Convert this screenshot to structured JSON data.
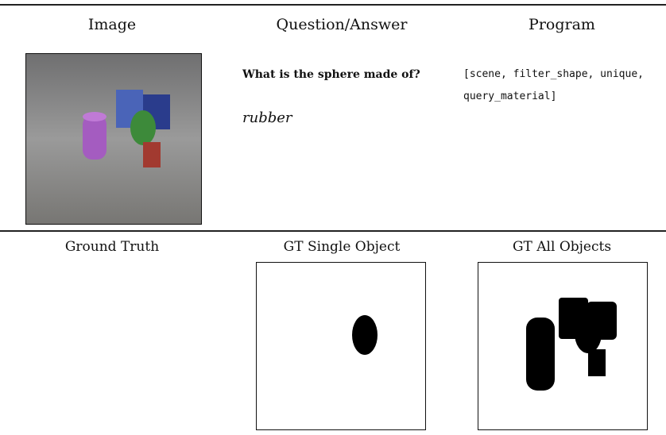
{
  "header": {
    "columns": [
      "Image",
      "Question/Answer",
      "Program"
    ]
  },
  "example": {
    "question": "What is the sphere made of?",
    "answer": "rubber",
    "program": "[scene, filter_shape, unique, query_material]"
  },
  "ground_truth": {
    "columns": [
      "Ground Truth",
      "GT Single Object",
      "GT All Objects"
    ]
  }
}
